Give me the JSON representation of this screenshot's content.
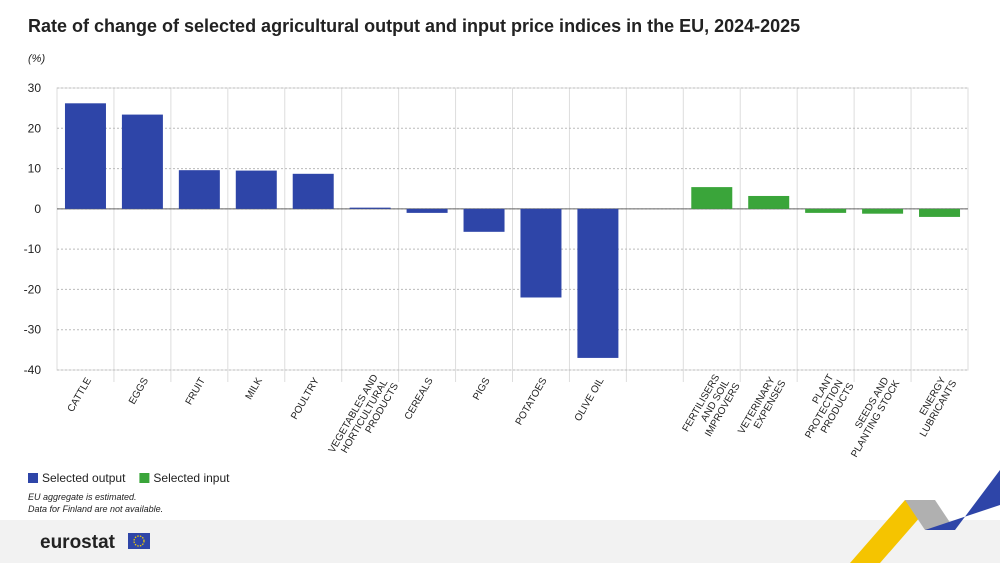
{
  "chart_data": {
    "type": "bar",
    "title": "Rate of change of selected agricultural output and input price indices in the EU, 2024-2025",
    "y_label": "(%)",
    "categories": [
      "CATTLE",
      "EGGS",
      "FRUIT",
      "MILK",
      "POULTRY",
      "VEGETABLES AND HORTICULTURAL PRODUCTS",
      "CEREALS",
      "PIGS",
      "POTATOES",
      "OLIVE OIL",
      null,
      "FERTILISERS AND SOIL IMPROVERS",
      "VETERINARY EXPENSES",
      "PLANT PROTECTION PRODUCTS",
      "SEEDS AND PLANTING STOCK",
      "ENERGY LUBRICANTS"
    ],
    "series": [
      {
        "name": "Selected output",
        "color": "#2e45a8",
        "values": [
          26.2,
          23.4,
          9.6,
          9.5,
          8.7,
          0.3,
          -1.0,
          -5.7,
          -22.0,
          -37.0,
          null,
          null,
          null,
          null,
          null,
          null
        ]
      },
      {
        "name": "Selected input",
        "color": "#3aa53a",
        "values": [
          null,
          null,
          null,
          null,
          null,
          null,
          null,
          null,
          null,
          null,
          null,
          5.4,
          3.2,
          -1.0,
          -1.2,
          -2.0
        ]
      }
    ],
    "ylim": [
      -40,
      30
    ],
    "yticks": [
      -40,
      -30,
      -20,
      -10,
      0,
      10,
      20,
      30
    ],
    "grid": true,
    "notes": [
      "EU aggregate is estimated.",
      "Data for Finland are not available."
    ],
    "source": "eurostat"
  }
}
